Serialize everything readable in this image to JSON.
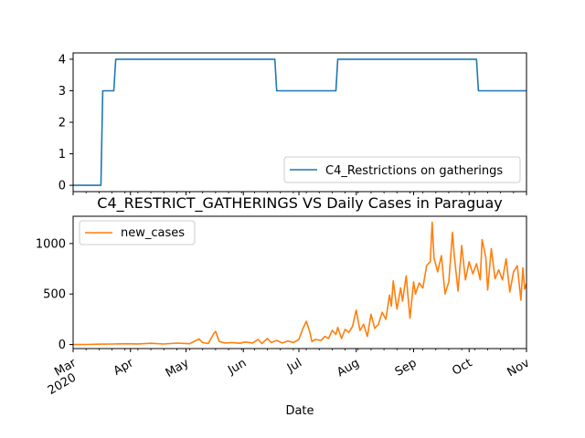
{
  "chart_data": [
    {
      "type": "line",
      "title": "",
      "ylabel": "",
      "xlabel": "",
      "x_range": [
        "2020-03-01",
        "2020-11-01"
      ],
      "ylim": [
        -0.2,
        4.2
      ],
      "yticks": [
        0,
        1,
        2,
        3,
        4
      ],
      "grid": false,
      "legend_placement": "lower-right",
      "series": [
        {
          "name": "C4_Restrictions on gatherings",
          "color": "#1f77b4",
          "points": [
            [
              "2020-03-01",
              0
            ],
            [
              "2020-03-16",
              0
            ],
            [
              "2020-03-17",
              3
            ],
            [
              "2020-03-23",
              3
            ],
            [
              "2020-03-24",
              4
            ],
            [
              "2020-06-18",
              4
            ],
            [
              "2020-06-19",
              3
            ],
            [
              "2020-07-21",
              3
            ],
            [
              "2020-07-22",
              4
            ],
            [
              "2020-10-05",
              4
            ],
            [
              "2020-10-06",
              3
            ],
            [
              "2020-11-01",
              3
            ]
          ]
        }
      ]
    },
    {
      "type": "line",
      "title": "C4_RESTRICT_GATHERINGS VS Daily Cases in Paraguay",
      "xlabel": "Date",
      "ylabel": "",
      "x_range": [
        "2020-03-01",
        "2020-11-01"
      ],
      "ylim": [
        -40,
        1270
      ],
      "yticks": [
        0,
        500,
        1000
      ],
      "xticks": [
        {
          "date": "2020-03-01",
          "label": "Mar",
          "sublabel": "2020"
        },
        {
          "date": "2020-04-01",
          "label": "Apr"
        },
        {
          "date": "2020-05-01",
          "label": "May"
        },
        {
          "date": "2020-06-01",
          "label": "Jun"
        },
        {
          "date": "2020-07-01",
          "label": "Jul"
        },
        {
          "date": "2020-08-01",
          "label": "Aug"
        },
        {
          "date": "2020-09-01",
          "label": "Sep"
        },
        {
          "date": "2020-10-01",
          "label": "Oct"
        },
        {
          "date": "2020-11-01",
          "label": "Nov"
        }
      ],
      "grid": false,
      "legend_placement": "upper-left",
      "series": [
        {
          "name": "new_cases",
          "color": "#ff7f0e",
          "points": [
            [
              "2020-03-01",
              0
            ],
            [
              "2020-03-08",
              1
            ],
            [
              "2020-03-15",
              3
            ],
            [
              "2020-03-22",
              5
            ],
            [
              "2020-03-29",
              8
            ],
            [
              "2020-04-05",
              6
            ],
            [
              "2020-04-12",
              12
            ],
            [
              "2020-04-19",
              5
            ],
            [
              "2020-04-26",
              14
            ],
            [
              "2020-05-03",
              8
            ],
            [
              "2020-05-08",
              55
            ],
            [
              "2020-05-10",
              20
            ],
            [
              "2020-05-13",
              10
            ],
            [
              "2020-05-16",
              110
            ],
            [
              "2020-05-17",
              130
            ],
            [
              "2020-05-19",
              30
            ],
            [
              "2020-05-22",
              15
            ],
            [
              "2020-05-26",
              20
            ],
            [
              "2020-05-30",
              12
            ],
            [
              "2020-06-02",
              25
            ],
            [
              "2020-06-06",
              15
            ],
            [
              "2020-06-09",
              50
            ],
            [
              "2020-06-11",
              10
            ],
            [
              "2020-06-14",
              60
            ],
            [
              "2020-06-16",
              20
            ],
            [
              "2020-06-19",
              40
            ],
            [
              "2020-06-22",
              15
            ],
            [
              "2020-06-25",
              35
            ],
            [
              "2020-06-28",
              20
            ],
            [
              "2020-07-01",
              50
            ],
            [
              "2020-07-03",
              150
            ],
            [
              "2020-07-05",
              230
            ],
            [
              "2020-07-07",
              120
            ],
            [
              "2020-07-08",
              30
            ],
            [
              "2020-07-10",
              50
            ],
            [
              "2020-07-13",
              40
            ],
            [
              "2020-07-15",
              80
            ],
            [
              "2020-07-17",
              60
            ],
            [
              "2020-07-19",
              140
            ],
            [
              "2020-07-21",
              100
            ],
            [
              "2020-07-22",
              170
            ],
            [
              "2020-07-24",
              60
            ],
            [
              "2020-07-26",
              150
            ],
            [
              "2020-07-28",
              120
            ],
            [
              "2020-07-30",
              180
            ],
            [
              "2020-08-01",
              340
            ],
            [
              "2020-08-03",
              140
            ],
            [
              "2020-08-05",
              200
            ],
            [
              "2020-08-07",
              80
            ],
            [
              "2020-08-09",
              300
            ],
            [
              "2020-08-11",
              160
            ],
            [
              "2020-08-13",
              200
            ],
            [
              "2020-08-15",
              320
            ],
            [
              "2020-08-17",
              250
            ],
            [
              "2020-08-19",
              490
            ],
            [
              "2020-08-20",
              380
            ],
            [
              "2020-08-21",
              630
            ],
            [
              "2020-08-23",
              350
            ],
            [
              "2020-08-25",
              560
            ],
            [
              "2020-08-26",
              430
            ],
            [
              "2020-08-28",
              680
            ],
            [
              "2020-08-30",
              260
            ],
            [
              "2020-09-01",
              620
            ],
            [
              "2020-09-02",
              500
            ],
            [
              "2020-09-04",
              610
            ],
            [
              "2020-09-06",
              560
            ],
            [
              "2020-09-08",
              780
            ],
            [
              "2020-09-10",
              820
            ],
            [
              "2020-09-11",
              1210
            ],
            [
              "2020-09-12",
              860
            ],
            [
              "2020-09-14",
              720
            ],
            [
              "2020-09-16",
              880
            ],
            [
              "2020-09-18",
              500
            ],
            [
              "2020-09-20",
              620
            ],
            [
              "2020-09-22",
              1110
            ],
            [
              "2020-09-23",
              880
            ],
            [
              "2020-09-25",
              530
            ],
            [
              "2020-09-27",
              980
            ],
            [
              "2020-09-29",
              640
            ],
            [
              "2020-10-01",
              820
            ],
            [
              "2020-10-03",
              700
            ],
            [
              "2020-10-05",
              800
            ],
            [
              "2020-10-07",
              640
            ],
            [
              "2020-10-08",
              1040
            ],
            [
              "2020-10-10",
              860
            ],
            [
              "2020-10-11",
              540
            ],
            [
              "2020-10-13",
              950
            ],
            [
              "2020-10-15",
              650
            ],
            [
              "2020-10-17",
              740
            ],
            [
              "2020-10-19",
              640
            ],
            [
              "2020-10-21",
              850
            ],
            [
              "2020-10-23",
              520
            ],
            [
              "2020-10-25",
              720
            ],
            [
              "2020-10-27",
              780
            ],
            [
              "2020-10-29",
              440
            ],
            [
              "2020-10-30",
              760
            ],
            [
              "2020-10-31",
              550
            ],
            [
              "2020-11-01",
              600
            ]
          ]
        }
      ]
    }
  ]
}
